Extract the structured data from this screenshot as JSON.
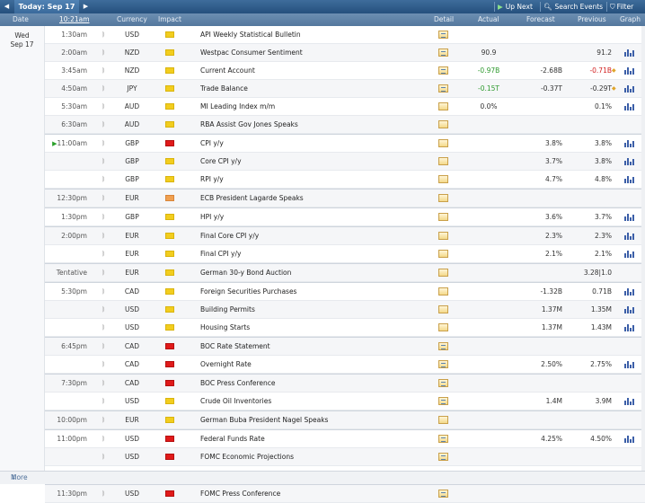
{
  "toolbar": {
    "prev_icon": "triangle-left-icon",
    "title": "Today: Sep 17",
    "next_icon": "triangle-right-icon",
    "up_next": "Up Next",
    "search_events": "Search Events",
    "filter": "Filter"
  },
  "columns": {
    "date": "Date",
    "time": "10:21am",
    "currency": "Currency",
    "impact": "Impact",
    "detail": "Detail",
    "actual": "Actual",
    "forecast": "Forecast",
    "previous": "Previous",
    "graph": "Graph"
  },
  "day": {
    "weekday": "Wed",
    "date": "Sep 17"
  },
  "rows": [
    {
      "time": "1:30am",
      "cur": "USD",
      "impact": "yellow",
      "event": "API Weekly Statistical Bulletin",
      "detail": "cal",
      "actual": "",
      "forecast": "",
      "previous": "",
      "graph": false
    },
    {
      "time": "2:00am",
      "cur": "NZD",
      "impact": "yellow",
      "event": "Westpac Consumer Sentiment",
      "detail": "cal",
      "actual": "90.9",
      "forecast": "",
      "previous": "91.2",
      "graph": true
    },
    {
      "time": "3:45am",
      "cur": "NZD",
      "impact": "yellow",
      "event": "Current Account",
      "detail": "cal",
      "actual": "-0.97B",
      "actual_color": "green",
      "forecast": "-2.68B",
      "previous": "-0.71B",
      "prev_color": "red",
      "revised": true,
      "graph": true
    },
    {
      "time": "4:50am",
      "cur": "JPY",
      "impact": "yellow",
      "event": "Trade Balance",
      "detail": "cal",
      "actual": "-0.15T",
      "actual_color": "green",
      "forecast": "-0.37T",
      "previous": "-0.29T",
      "revised": true,
      "graph": true
    },
    {
      "time": "5:30am",
      "cur": "AUD",
      "impact": "yellow",
      "event": "MI Leading Index m/m",
      "detail": "plain",
      "actual": "0.0%",
      "forecast": "",
      "previous": "0.1%",
      "graph": true
    },
    {
      "time": "6:30am",
      "cur": "AUD",
      "impact": "yellow",
      "event": "RBA Assist Gov Jones Speaks",
      "detail": "plain",
      "actual": "",
      "forecast": "",
      "previous": "",
      "graph": false
    },
    {
      "time": "11:00am",
      "now": true,
      "cur": "GBP",
      "impact": "red",
      "event": "CPI y/y",
      "detail": "plain",
      "actual": "",
      "forecast": "3.8%",
      "previous": "3.8%",
      "graph": true,
      "group": true
    },
    {
      "time": "",
      "cur": "GBP",
      "impact": "yellow",
      "event": "Core CPI y/y",
      "detail": "plain",
      "actual": "",
      "forecast": "3.7%",
      "previous": "3.8%",
      "graph": true
    },
    {
      "time": "",
      "cur": "GBP",
      "impact": "yellow",
      "event": "RPI y/y",
      "detail": "plain",
      "actual": "",
      "forecast": "4.7%",
      "previous": "4.8%",
      "graph": true
    },
    {
      "time": "12:30pm",
      "cur": "EUR",
      "impact": "orange",
      "event": "ECB President Lagarde Speaks",
      "detail": "plain",
      "actual": "",
      "forecast": "",
      "previous": "",
      "graph": false,
      "group": true
    },
    {
      "time": "1:30pm",
      "cur": "GBP",
      "impact": "yellow",
      "event": "HPI y/y",
      "detail": "plain",
      "actual": "",
      "forecast": "3.6%",
      "previous": "3.7%",
      "graph": true,
      "group": true
    },
    {
      "time": "2:00pm",
      "cur": "EUR",
      "impact": "yellow",
      "event": "Final Core CPI y/y",
      "detail": "plain",
      "actual": "",
      "forecast": "2.3%",
      "previous": "2.3%",
      "graph": true,
      "group": true
    },
    {
      "time": "",
      "cur": "EUR",
      "impact": "yellow",
      "event": "Final CPI y/y",
      "detail": "plain",
      "actual": "",
      "forecast": "2.1%",
      "previous": "2.1%",
      "graph": true
    },
    {
      "time": "Tentative",
      "cur": "EUR",
      "impact": "yellow",
      "event": "German 30-y Bond Auction",
      "detail": "plain",
      "actual": "",
      "forecast": "",
      "previous": "3.28|1.0",
      "graph": false,
      "group": true
    },
    {
      "time": "5:30pm",
      "cur": "CAD",
      "impact": "yellow",
      "event": "Foreign Securities Purchases",
      "detail": "plain",
      "actual": "",
      "forecast": "-1.32B",
      "previous": "0.71B",
      "graph": true,
      "group": true
    },
    {
      "time": "",
      "cur": "USD",
      "impact": "yellow",
      "event": "Building Permits",
      "detail": "plain",
      "actual": "",
      "forecast": "1.37M",
      "previous": "1.35M",
      "graph": true
    },
    {
      "time": "",
      "cur": "USD",
      "impact": "yellow",
      "event": "Housing Starts",
      "detail": "plain",
      "actual": "",
      "forecast": "1.37M",
      "previous": "1.43M",
      "graph": true
    },
    {
      "time": "6:45pm",
      "cur": "CAD",
      "impact": "red",
      "event": "BOC Rate Statement",
      "detail": "cal",
      "actual": "",
      "forecast": "",
      "previous": "",
      "graph": false,
      "group": true
    },
    {
      "time": "",
      "cur": "CAD",
      "impact": "red",
      "event": "Overnight Rate",
      "detail": "cal",
      "actual": "",
      "forecast": "2.50%",
      "previous": "2.75%",
      "graph": true
    },
    {
      "time": "7:30pm",
      "cur": "CAD",
      "impact": "red",
      "event": "BOC Press Conference",
      "detail": "cal",
      "actual": "",
      "forecast": "",
      "previous": "",
      "graph": false,
      "group": true
    },
    {
      "time": "",
      "cur": "USD",
      "impact": "yellow",
      "event": "Crude Oil Inventories",
      "detail": "cal",
      "actual": "",
      "forecast": "1.4M",
      "previous": "3.9M",
      "graph": true
    },
    {
      "time": "10:00pm",
      "cur": "EUR",
      "impact": "yellow",
      "event": "German Buba President Nagel Speaks",
      "detail": "plain",
      "actual": "",
      "forecast": "",
      "previous": "",
      "graph": false,
      "group": true
    },
    {
      "time": "11:00pm",
      "cur": "USD",
      "impact": "red",
      "event": "Federal Funds Rate",
      "detail": "cal",
      "actual": "",
      "forecast": "4.25%",
      "previous": "4.50%",
      "graph": true,
      "group": true
    },
    {
      "time": "",
      "cur": "USD",
      "impact": "red",
      "event": "FOMC Economic Projections",
      "detail": "cal",
      "actual": "",
      "forecast": "",
      "previous": "",
      "graph": false
    },
    {
      "time": "",
      "cur": "USD",
      "impact": "red",
      "event": "FOMC Statement",
      "detail": "cal",
      "actual": "",
      "forecast": "",
      "previous": "",
      "graph": false
    },
    {
      "time": "11:30pm",
      "cur": "USD",
      "impact": "red",
      "event": "FOMC Press Conference",
      "detail": "cal",
      "actual": "",
      "forecast": "",
      "previous": "",
      "graph": false,
      "group": true
    }
  ],
  "footer": {
    "more": "More"
  },
  "colors": {
    "accent": "#25507d",
    "green": "#2f9a2f",
    "red": "#d22020",
    "impact_high": "#e01a1a",
    "impact_med": "#f0a050",
    "impact_low": "#f2cd1e"
  }
}
